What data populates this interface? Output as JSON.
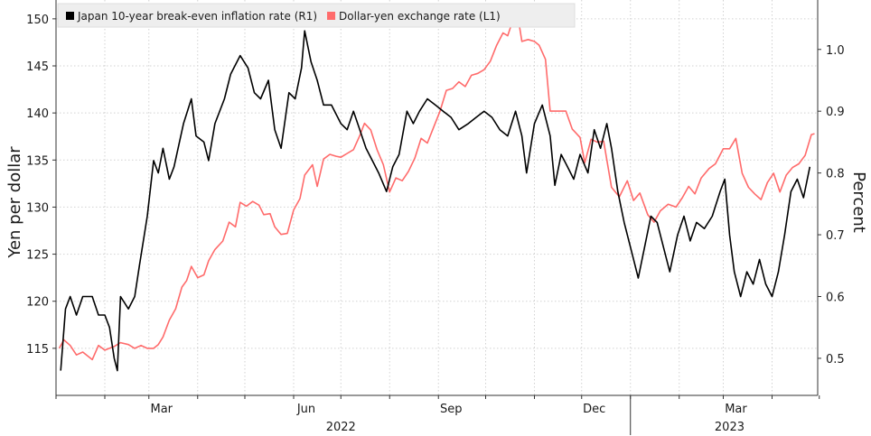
{
  "chart_data": {
    "type": "line",
    "title": "",
    "xlabel": "",
    "x_ticks": [
      "Mar",
      "Jun",
      "Sep",
      "Dec",
      "Mar"
    ],
    "x_years": [
      "2022",
      "2023"
    ],
    "x_range": [
      "2022-01-01",
      "2023-04-30"
    ],
    "left_axis": {
      "label": "Yen per dollar",
      "range": [
        110,
        152
      ],
      "ticks": [
        115,
        120,
        125,
        130,
        135,
        140,
        145,
        150
      ]
    },
    "right_axis": {
      "label": "Percent",
      "range": [
        0.44,
        1.08
      ],
      "ticks": [
        "0.5",
        "0.6",
        "0.7",
        "0.8",
        "0.9",
        "1.0"
      ]
    },
    "grid": true,
    "legend_position": "top-left",
    "series": [
      {
        "name": "Japan 10-year break-even inflation rate (R1)",
        "axis": "right",
        "color": "#000000",
        "points": [
          [
            "2022-01-04",
            0.48
          ],
          [
            "2022-01-07",
            0.58
          ],
          [
            "2022-01-10",
            0.6
          ],
          [
            "2022-01-14",
            0.57
          ],
          [
            "2022-01-18",
            0.6
          ],
          [
            "2022-01-24",
            0.6
          ],
          [
            "2022-01-28",
            0.57
          ],
          [
            "2022-02-01",
            0.57
          ],
          [
            "2022-02-04",
            0.55
          ],
          [
            "2022-02-07",
            0.5
          ],
          [
            "2022-02-09",
            0.48
          ],
          [
            "2022-02-11",
            0.6
          ],
          [
            "2022-02-16",
            0.58
          ],
          [
            "2022-02-20",
            0.6
          ],
          [
            "2022-02-23",
            0.65
          ],
          [
            "2022-02-28",
            0.73
          ],
          [
            "2022-03-04",
            0.82
          ],
          [
            "2022-03-07",
            0.8
          ],
          [
            "2022-03-10",
            0.84
          ],
          [
            "2022-03-14",
            0.79
          ],
          [
            "2022-03-17",
            0.81
          ],
          [
            "2022-03-23",
            0.88
          ],
          [
            "2022-03-28",
            0.92
          ],
          [
            "2022-03-31",
            0.86
          ],
          [
            "2022-04-05",
            0.85
          ],
          [
            "2022-04-08",
            0.82
          ],
          [
            "2022-04-12",
            0.88
          ],
          [
            "2022-04-18",
            0.92
          ],
          [
            "2022-04-22",
            0.96
          ],
          [
            "2022-04-28",
            0.99
          ],
          [
            "2022-05-03",
            0.97
          ],
          [
            "2022-05-07",
            0.93
          ],
          [
            "2022-05-11",
            0.92
          ],
          [
            "2022-05-16",
            0.95
          ],
          [
            "2022-05-20",
            0.87
          ],
          [
            "2022-05-24",
            0.84
          ],
          [
            "2022-05-29",
            0.93
          ],
          [
            "2022-06-02",
            0.92
          ],
          [
            "2022-06-06",
            0.97
          ],
          [
            "2022-06-08",
            1.03
          ],
          [
            "2022-06-12",
            0.98
          ],
          [
            "2022-06-16",
            0.95
          ],
          [
            "2022-06-20",
            0.91
          ],
          [
            "2022-06-25",
            0.91
          ],
          [
            "2022-07-01",
            0.88
          ],
          [
            "2022-07-05",
            0.87
          ],
          [
            "2022-07-09",
            0.9
          ],
          [
            "2022-07-13",
            0.87
          ],
          [
            "2022-07-17",
            0.84
          ],
          [
            "2022-07-21",
            0.82
          ],
          [
            "2022-07-25",
            0.8
          ],
          [
            "2022-07-30",
            0.77
          ],
          [
            "2022-08-03",
            0.81
          ],
          [
            "2022-08-07",
            0.83
          ],
          [
            "2022-08-12",
            0.9
          ],
          [
            "2022-08-16",
            0.88
          ],
          [
            "2022-08-20",
            0.9
          ],
          [
            "2022-08-25",
            0.92
          ],
          [
            "2022-08-30",
            0.91
          ],
          [
            "2022-09-04",
            0.9
          ],
          [
            "2022-09-09",
            0.89
          ],
          [
            "2022-09-14",
            0.87
          ],
          [
            "2022-09-20",
            0.88
          ],
          [
            "2022-09-25",
            0.89
          ],
          [
            "2022-09-30",
            0.9
          ],
          [
            "2022-10-05",
            0.89
          ],
          [
            "2022-10-10",
            0.87
          ],
          [
            "2022-10-15",
            0.86
          ],
          [
            "2022-10-20",
            0.9
          ],
          [
            "2022-10-24",
            0.86
          ],
          [
            "2022-10-27",
            0.8
          ],
          [
            "2022-11-01",
            0.88
          ],
          [
            "2022-11-06",
            0.91
          ],
          [
            "2022-11-11",
            0.86
          ],
          [
            "2022-11-14",
            0.78
          ],
          [
            "2022-11-18",
            0.83
          ],
          [
            "2022-11-22",
            0.81
          ],
          [
            "2022-11-26",
            0.79
          ],
          [
            "2022-11-30",
            0.83
          ],
          [
            "2022-12-05",
            0.8
          ],
          [
            "2022-12-09",
            0.87
          ],
          [
            "2022-12-13",
            0.84
          ],
          [
            "2022-12-17",
            0.88
          ],
          [
            "2022-12-20",
            0.84
          ],
          [
            "2022-12-24",
            0.77
          ],
          [
            "2022-12-28",
            0.72
          ],
          [
            "2023-01-02",
            0.67
          ],
          [
            "2023-01-06",
            0.63
          ],
          [
            "2023-01-10",
            0.68
          ],
          [
            "2023-01-14",
            0.73
          ],
          [
            "2023-01-18",
            0.72
          ],
          [
            "2023-01-22",
            0.68
          ],
          [
            "2023-01-26",
            0.64
          ],
          [
            "2023-01-31",
            0.7
          ],
          [
            "2023-02-04",
            0.73
          ],
          [
            "2023-02-08",
            0.69
          ],
          [
            "2023-02-12",
            0.72
          ],
          [
            "2023-02-17",
            0.71
          ],
          [
            "2023-02-22",
            0.73
          ],
          [
            "2023-02-27",
            0.77
          ],
          [
            "2023-03-02",
            0.79
          ],
          [
            "2023-03-05",
            0.7
          ],
          [
            "2023-03-08",
            0.64
          ],
          [
            "2023-03-12",
            0.6
          ],
          [
            "2023-03-16",
            0.64
          ],
          [
            "2023-03-20",
            0.62
          ],
          [
            "2023-03-24",
            0.66
          ],
          [
            "2023-03-28",
            0.62
          ],
          [
            "2023-04-01",
            0.6
          ],
          [
            "2023-04-05",
            0.64
          ],
          [
            "2023-04-09",
            0.7
          ],
          [
            "2023-04-13",
            0.77
          ],
          [
            "2023-04-17",
            0.79
          ],
          [
            "2023-04-21",
            0.76
          ],
          [
            "2023-04-25",
            0.81
          ]
        ]
      },
      {
        "name": "Dollar-yen exchange rate (L1)",
        "axis": "left",
        "color": "#ff6b6b",
        "points": [
          [
            "2022-01-03",
            115
          ],
          [
            "2022-01-06",
            115.9
          ],
          [
            "2022-01-10",
            115.3
          ],
          [
            "2022-01-14",
            114.3
          ],
          [
            "2022-01-18",
            114.6
          ],
          [
            "2022-01-24",
            113.8
          ],
          [
            "2022-01-28",
            115.3
          ],
          [
            "2022-02-01",
            114.8
          ],
          [
            "2022-02-07",
            115.2
          ],
          [
            "2022-02-11",
            115.6
          ],
          [
            "2022-02-16",
            115.4
          ],
          [
            "2022-02-20",
            115
          ],
          [
            "2022-02-24",
            115.3
          ],
          [
            "2022-02-28",
            115
          ],
          [
            "2022-03-04",
            115
          ],
          [
            "2022-03-07",
            115.4
          ],
          [
            "2022-03-10",
            116.2
          ],
          [
            "2022-03-14",
            118
          ],
          [
            "2022-03-18",
            119.2
          ],
          [
            "2022-03-22",
            121.5
          ],
          [
            "2022-03-25",
            122.2
          ],
          [
            "2022-03-28",
            123.7
          ],
          [
            "2022-04-01",
            122.5
          ],
          [
            "2022-04-05",
            122.8
          ],
          [
            "2022-04-08",
            124.3
          ],
          [
            "2022-04-12",
            125.5
          ],
          [
            "2022-04-17",
            126.4
          ],
          [
            "2022-04-21",
            128.4
          ],
          [
            "2022-04-25",
            127.9
          ],
          [
            "2022-04-28",
            130.5
          ],
          [
            "2022-05-02",
            130.1
          ],
          [
            "2022-05-06",
            130.6
          ],
          [
            "2022-05-10",
            130.2
          ],
          [
            "2022-05-13",
            129.2
          ],
          [
            "2022-05-17",
            129.3
          ],
          [
            "2022-05-20",
            127.9
          ],
          [
            "2022-05-24",
            127.1
          ],
          [
            "2022-05-28",
            127.2
          ],
          [
            "2022-06-01",
            129.7
          ],
          [
            "2022-06-05",
            130.9
          ],
          [
            "2022-06-08",
            133.4
          ],
          [
            "2022-06-13",
            134.5
          ],
          [
            "2022-06-16",
            132.2
          ],
          [
            "2022-06-20",
            135.1
          ],
          [
            "2022-06-24",
            135.6
          ],
          [
            "2022-06-28",
            135.4
          ],
          [
            "2022-07-01",
            135.3
          ],
          [
            "2022-07-05",
            135.7
          ],
          [
            "2022-07-09",
            136.1
          ],
          [
            "2022-07-13",
            137.6
          ],
          [
            "2022-07-16",
            138.9
          ],
          [
            "2022-07-20",
            138.2
          ],
          [
            "2022-07-24",
            136.1
          ],
          [
            "2022-07-28",
            134.5
          ],
          [
            "2022-08-01",
            131.6
          ],
          [
            "2022-08-05",
            133.1
          ],
          [
            "2022-08-09",
            132.8
          ],
          [
            "2022-08-13",
            133.8
          ],
          [
            "2022-08-17",
            135.2
          ],
          [
            "2022-08-21",
            137.3
          ],
          [
            "2022-08-25",
            136.8
          ],
          [
            "2022-08-29",
            138.5
          ],
          [
            "2022-09-02",
            140.2
          ],
          [
            "2022-09-06",
            142.4
          ],
          [
            "2022-09-10",
            142.6
          ],
          [
            "2022-09-14",
            143.3
          ],
          [
            "2022-09-18",
            142.8
          ],
          [
            "2022-09-22",
            144
          ],
          [
            "2022-09-26",
            144.2
          ],
          [
            "2022-09-30",
            144.6
          ],
          [
            "2022-10-04",
            145.5
          ],
          [
            "2022-10-08",
            147.2
          ],
          [
            "2022-10-12",
            148.5
          ],
          [
            "2022-10-15",
            148.2
          ],
          [
            "2022-10-18",
            149.7
          ],
          [
            "2022-10-21",
            150.8
          ],
          [
            "2022-10-24",
            147.6
          ],
          [
            "2022-10-28",
            147.8
          ],
          [
            "2022-11-01",
            147.6
          ],
          [
            "2022-11-04",
            147.2
          ],
          [
            "2022-11-08",
            145.7
          ],
          [
            "2022-11-11",
            140.2
          ],
          [
            "2022-11-16",
            140.2
          ],
          [
            "2022-11-21",
            140.2
          ],
          [
            "2022-11-25",
            138.3
          ],
          [
            "2022-11-30",
            137.4
          ],
          [
            "2022-12-03",
            134.7
          ],
          [
            "2022-12-07",
            137.2
          ],
          [
            "2022-12-11",
            136.9
          ],
          [
            "2022-12-15",
            137
          ],
          [
            "2022-12-20",
            132.1
          ],
          [
            "2022-12-25",
            131.1
          ],
          [
            "2022-12-30",
            132.8
          ],
          [
            "2023-01-03",
            130.7
          ],
          [
            "2023-01-07",
            131.5
          ],
          [
            "2023-01-12",
            129.2
          ],
          [
            "2023-01-16",
            128.4
          ],
          [
            "2023-01-20",
            129.6
          ],
          [
            "2023-01-25",
            130.3
          ],
          [
            "2023-01-30",
            130
          ],
          [
            "2023-02-03",
            131
          ],
          [
            "2023-02-07",
            132.2
          ],
          [
            "2023-02-11",
            131.4
          ],
          [
            "2023-02-15",
            133.1
          ],
          [
            "2023-02-20",
            134.1
          ],
          [
            "2023-02-24",
            134.6
          ],
          [
            "2023-03-01",
            136.2
          ],
          [
            "2023-03-05",
            136.2
          ],
          [
            "2023-03-09",
            137.3
          ],
          [
            "2023-03-13",
            133.6
          ],
          [
            "2023-03-17",
            132.1
          ],
          [
            "2023-03-21",
            131.4
          ],
          [
            "2023-03-25",
            130.8
          ],
          [
            "2023-03-29",
            132.6
          ],
          [
            "2023-04-02",
            133.6
          ],
          [
            "2023-04-06",
            131.6
          ],
          [
            "2023-04-10",
            133.4
          ],
          [
            "2023-04-14",
            134.2
          ],
          [
            "2023-04-18",
            134.6
          ],
          [
            "2023-04-22",
            135.5
          ],
          [
            "2023-04-26",
            137.7
          ],
          [
            "2023-04-28",
            137.8
          ]
        ]
      }
    ]
  }
}
